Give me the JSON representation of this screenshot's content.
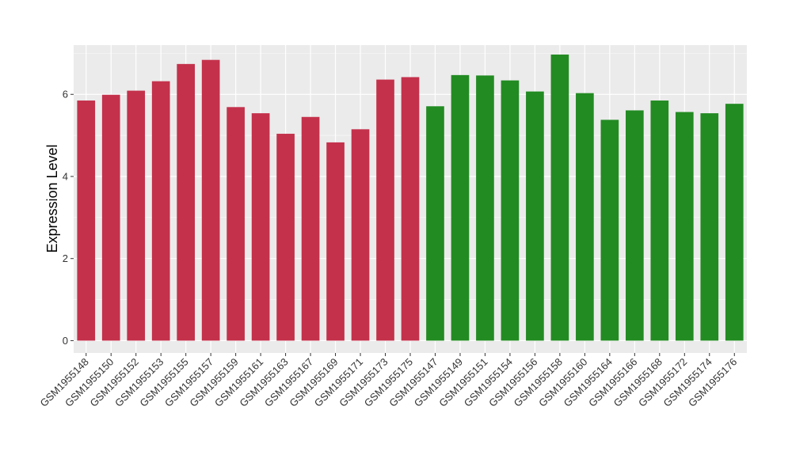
{
  "chart_data": {
    "type": "bar",
    "ylabel": "Expression Level",
    "xlabel": "",
    "ylim": [
      -0.3,
      7.2
    ],
    "yticks": [
      0,
      2,
      4,
      6
    ],
    "grid": true,
    "legend": "none",
    "colors": {
      "group1": "#c4314b",
      "group2": "#228b22",
      "panel": "#ebebeb",
      "gridline": "#ffffff"
    },
    "categories": [
      "GSM1955148",
      "GSM1955150",
      "GSM1955152",
      "GSM1955153",
      "GSM1955155",
      "GSM1955157",
      "GSM1955159",
      "GSM1955161",
      "GSM1955163",
      "GSM1955167",
      "GSM1955169",
      "GSM1955171",
      "GSM1955173",
      "GSM1955175",
      "GSM1955147",
      "GSM1955149",
      "GSM1955151",
      "GSM1955154",
      "GSM1955156",
      "GSM1955158",
      "GSM1955160",
      "GSM1955164",
      "GSM1955166",
      "GSM1955168",
      "GSM1955172",
      "GSM1955174",
      "GSM1955176"
    ],
    "values": [
      5.85,
      5.99,
      6.09,
      6.32,
      6.74,
      6.84,
      5.69,
      5.54,
      5.04,
      5.45,
      4.83,
      5.15,
      6.36,
      6.42,
      5.71,
      6.47,
      6.46,
      6.34,
      6.07,
      6.97,
      6.03,
      5.38,
      5.61,
      5.85,
      5.57,
      5.54,
      5.77
    ],
    "groups": [
      1,
      1,
      1,
      1,
      1,
      1,
      1,
      1,
      1,
      1,
      1,
      1,
      1,
      1,
      2,
      2,
      2,
      2,
      2,
      2,
      2,
      2,
      2,
      2,
      2,
      2,
      2
    ]
  }
}
